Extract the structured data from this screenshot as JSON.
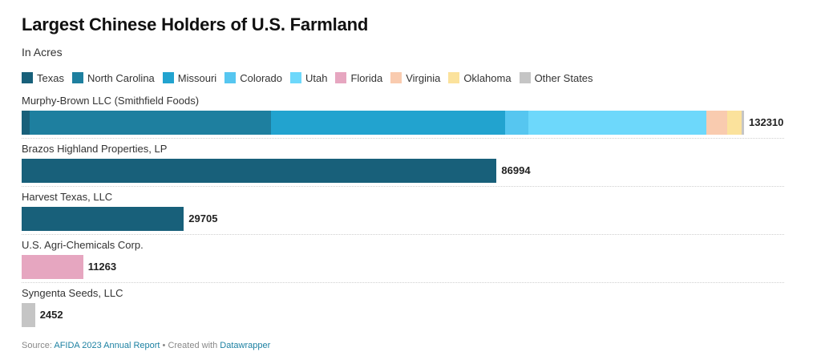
{
  "header": {
    "title": "Largest Chinese Holders of U.S. Farmland",
    "subtitle": "In Acres"
  },
  "footer": {
    "source_prefix": "Source:",
    "source_link": "AFIDA 2023 Annual Report",
    "separator": "•",
    "created_prefix": "Created with",
    "created_link": "Datawrapper"
  },
  "chart_data": {
    "type": "bar",
    "orientation": "horizontal",
    "stacked": true,
    "title": "Largest Chinese Holders of U.S. Farmland",
    "subtitle": "In Acres",
    "xlim": [
      0,
      132310
    ],
    "legend_position": "top",
    "series": [
      {
        "name": "Texas",
        "color": "#18607a"
      },
      {
        "name": "North Carolina",
        "color": "#1e7f9f"
      },
      {
        "name": "Missouri",
        "color": "#22a3cf"
      },
      {
        "name": "Colorado",
        "color": "#56c6f0"
      },
      {
        "name": "Utah",
        "color": "#6dd8fb"
      },
      {
        "name": "Florida",
        "color": "#e6a6c0"
      },
      {
        "name": "Virginia",
        "color": "#f9cbaf"
      },
      {
        "name": "Oklahoma",
        "color": "#fbe29c"
      },
      {
        "name": "Other States",
        "color": "#c5c5c5"
      }
    ],
    "categories": [
      "Murphy-Brown LLC (Smithfield Foods)",
      "Brazos Highland Properties, LP",
      "Harvest Texas, LLC",
      "U.S. Agri-Chemicals Corp.",
      "Syngenta Seeds, LLC"
    ],
    "totals": [
      132310,
      86994,
      29705,
      11263,
      2452
    ],
    "values": [
      [
        1500,
        44200,
        42800,
        4300,
        32600,
        0,
        3800,
        2600,
        510
      ],
      [
        86994,
        0,
        0,
        0,
        0,
        0,
        0,
        0,
        0
      ],
      [
        29705,
        0,
        0,
        0,
        0,
        0,
        0,
        0,
        0
      ],
      [
        0,
        0,
        0,
        0,
        0,
        11263,
        0,
        0,
        0
      ],
      [
        0,
        0,
        0,
        0,
        0,
        0,
        0,
        0,
        2452
      ]
    ]
  }
}
